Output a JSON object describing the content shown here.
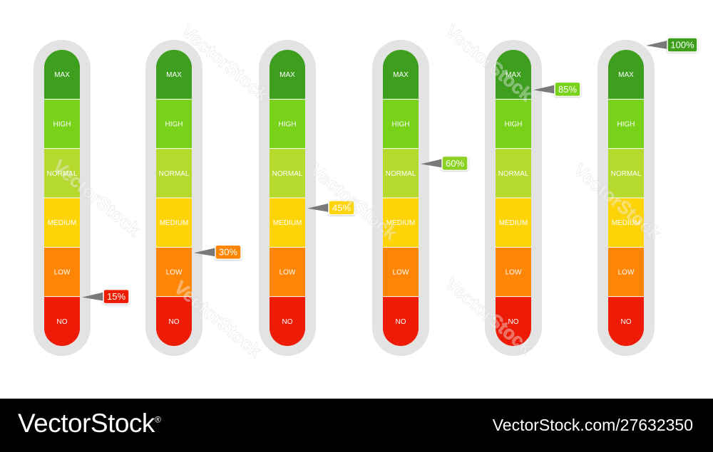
{
  "levels": [
    "MAX",
    "HIGH",
    "NORMAL",
    "MEDIUM",
    "LOW",
    "NO"
  ],
  "level_colors": [
    "#3e9e1e",
    "#79d21a",
    "#b5d92c",
    "#fed407",
    "#ff8505",
    "#ee1b06"
  ],
  "meters": [
    {
      "value": 15,
      "label": "15%",
      "color": "#ee1b06"
    },
    {
      "value": 30,
      "label": "30%",
      "color": "#ff8505"
    },
    {
      "value": 45,
      "label": "45%",
      "color": "#fed407"
    },
    {
      "value": 60,
      "label": "60%",
      "color": "#8bd122"
    },
    {
      "value": 85,
      "label": "85%",
      "color": "#79d21a"
    },
    {
      "value": 100,
      "label": "100%",
      "color": "#3e9e1e"
    }
  ],
  "watermark": "VectorStock",
  "footer": {
    "brand": "VectorStock",
    "brand_mark": "®",
    "image_id": "VectorStock.com/27632350"
  }
}
